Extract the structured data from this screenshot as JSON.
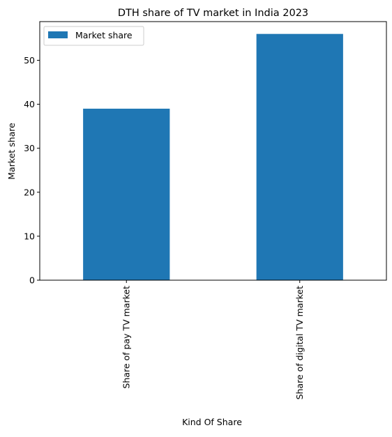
{
  "chart_data": {
    "type": "bar",
    "title": "DTH share of TV market in India 2023",
    "xlabel": "Kind Of Share",
    "ylabel": "Market share",
    "categories": [
      "Share of pay TV market",
      "Share of digital TV market"
    ],
    "series": [
      {
        "name": "Market share",
        "values": [
          39,
          56
        ],
        "color": "#1f77b4"
      }
    ],
    "ylim": [
      0,
      58.8
    ],
    "yticks": [
      0,
      10,
      20,
      30,
      40,
      50
    ],
    "grid": false,
    "legend_position": "top-left",
    "x_tick_rotation": 90
  }
}
